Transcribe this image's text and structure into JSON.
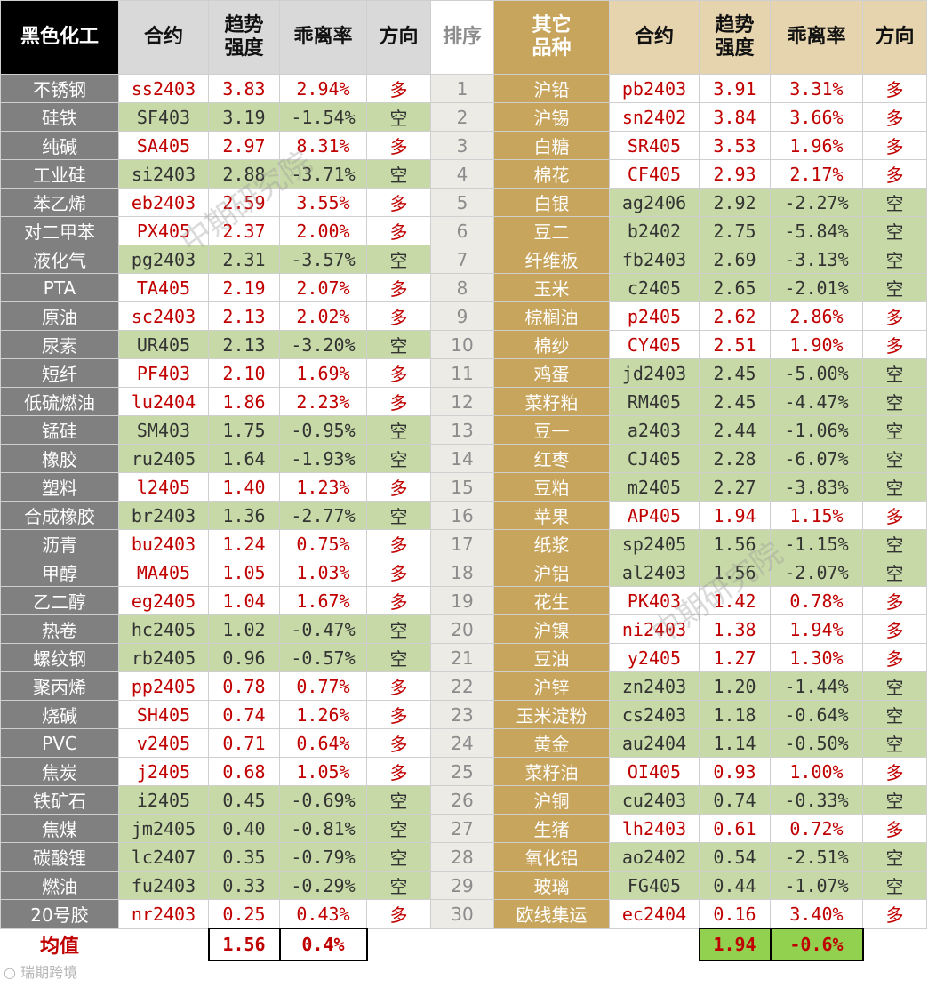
{
  "headers": {
    "left": [
      "黑色化工",
      "合约",
      "趋势强度",
      "乖离率",
      "方向"
    ],
    "rank": "排序",
    "right": [
      "其它品种",
      "合约",
      "趋势强度",
      "乖离率",
      "方向"
    ]
  },
  "rows": [
    {
      "rank": "1",
      "l": [
        "不锈钢",
        "ss2403",
        "3.83",
        "2.94%",
        "多"
      ],
      "r": [
        "沪铅",
        "pb2403",
        "3.91",
        "3.31%",
        "多"
      ]
    },
    {
      "rank": "2",
      "l": [
        "硅铁",
        "SF403",
        "3.19",
        "-1.54%",
        "空"
      ],
      "r": [
        "沪锡",
        "sn2402",
        "3.84",
        "3.66%",
        "多"
      ]
    },
    {
      "rank": "3",
      "l": [
        "纯碱",
        "SA405",
        "2.97",
        "8.31%",
        "多"
      ],
      "r": [
        "白糖",
        "SR405",
        "3.53",
        "1.96%",
        "多"
      ]
    },
    {
      "rank": "4",
      "l": [
        "工业硅",
        "si2403",
        "2.88",
        "-3.71%",
        "空"
      ],
      "r": [
        "棉花",
        "CF405",
        "2.93",
        "2.17%",
        "多"
      ]
    },
    {
      "rank": "5",
      "l": [
        "苯乙烯",
        "eb2403",
        "2.59",
        "3.55%",
        "多"
      ],
      "r": [
        "白银",
        "ag2406",
        "2.92",
        "-2.27%",
        "空"
      ]
    },
    {
      "rank": "6",
      "l": [
        "对二甲苯",
        "PX405",
        "2.37",
        "2.00%",
        "多"
      ],
      "r": [
        "豆二",
        "b2402",
        "2.75",
        "-5.84%",
        "空"
      ]
    },
    {
      "rank": "7",
      "l": [
        "液化气",
        "pg2403",
        "2.31",
        "-3.57%",
        "空"
      ],
      "r": [
        "纤维板",
        "fb2403",
        "2.69",
        "-3.13%",
        "空"
      ]
    },
    {
      "rank": "8",
      "l": [
        "PTA",
        "TA405",
        "2.19",
        "2.07%",
        "多"
      ],
      "r": [
        "玉米",
        "c2405",
        "2.65",
        "-2.01%",
        "空"
      ]
    },
    {
      "rank": "9",
      "l": [
        "原油",
        "sc2403",
        "2.13",
        "2.02%",
        "多"
      ],
      "r": [
        "棕榈油",
        "p2405",
        "2.62",
        "2.86%",
        "多"
      ]
    },
    {
      "rank": "10",
      "l": [
        "尿素",
        "UR405",
        "2.13",
        "-3.20%",
        "空"
      ],
      "r": [
        "棉纱",
        "CY405",
        "2.51",
        "1.90%",
        "多"
      ]
    },
    {
      "rank": "11",
      "l": [
        "短纤",
        "PF403",
        "2.10",
        "1.69%",
        "多"
      ],
      "r": [
        "鸡蛋",
        "jd2403",
        "2.45",
        "-5.00%",
        "空"
      ]
    },
    {
      "rank": "12",
      "l": [
        "低硫燃油",
        "lu2404",
        "1.86",
        "2.23%",
        "多"
      ],
      "r": [
        "菜籽粕",
        "RM405",
        "2.45",
        "-4.47%",
        "空"
      ]
    },
    {
      "rank": "13",
      "l": [
        "锰硅",
        "SM403",
        "1.75",
        "-0.95%",
        "空"
      ],
      "r": [
        "豆一",
        "a2403",
        "2.44",
        "-1.06%",
        "空"
      ]
    },
    {
      "rank": "14",
      "l": [
        "橡胶",
        "ru2405",
        "1.64",
        "-1.93%",
        "空"
      ],
      "r": [
        "红枣",
        "CJ405",
        "2.28",
        "-6.07%",
        "空"
      ]
    },
    {
      "rank": "15",
      "l": [
        "塑料",
        "l2405",
        "1.40",
        "1.23%",
        "多"
      ],
      "r": [
        "豆粕",
        "m2405",
        "2.27",
        "-3.83%",
        "空"
      ]
    },
    {
      "rank": "16",
      "l": [
        "合成橡胶",
        "br2403",
        "1.36",
        "-2.77%",
        "空"
      ],
      "r": [
        "苹果",
        "AP405",
        "1.94",
        "1.15%",
        "多"
      ]
    },
    {
      "rank": "17",
      "l": [
        "沥青",
        "bu2403",
        "1.24",
        "0.75%",
        "多"
      ],
      "r": [
        "纸浆",
        "sp2405",
        "1.56",
        "-1.15%",
        "空"
      ]
    },
    {
      "rank": "18",
      "l": [
        "甲醇",
        "MA405",
        "1.05",
        "1.03%",
        "多"
      ],
      "r": [
        "沪铝",
        "al2403",
        "1.56",
        "-2.07%",
        "空"
      ]
    },
    {
      "rank": "19",
      "l": [
        "乙二醇",
        "eg2405",
        "1.04",
        "1.67%",
        "多"
      ],
      "r": [
        "花生",
        "PK403",
        "1.42",
        "0.78%",
        "多"
      ]
    },
    {
      "rank": "20",
      "l": [
        "热卷",
        "hc2405",
        "1.02",
        "-0.47%",
        "空"
      ],
      "r": [
        "沪镍",
        "ni2403",
        "1.38",
        "1.94%",
        "多"
      ]
    },
    {
      "rank": "21",
      "l": [
        "螺纹钢",
        "rb2405",
        "0.96",
        "-0.57%",
        "空"
      ],
      "r": [
        "豆油",
        "y2405",
        "1.27",
        "1.30%",
        "多"
      ]
    },
    {
      "rank": "22",
      "l": [
        "聚丙烯",
        "pp2405",
        "0.78",
        "0.77%",
        "多"
      ],
      "r": [
        "沪锌",
        "zn2403",
        "1.20",
        "-1.44%",
        "空"
      ]
    },
    {
      "rank": "23",
      "l": [
        "烧碱",
        "SH405",
        "0.74",
        "1.26%",
        "多"
      ],
      "r": [
        "玉米淀粉",
        "cs2403",
        "1.18",
        "-0.64%",
        "空"
      ]
    },
    {
      "rank": "24",
      "l": [
        "PVC",
        "v2405",
        "0.71",
        "0.64%",
        "多"
      ],
      "r": [
        "黄金",
        "au2404",
        "1.14",
        "-0.50%",
        "空"
      ]
    },
    {
      "rank": "25",
      "l": [
        "焦炭",
        "j2405",
        "0.68",
        "1.05%",
        "多"
      ],
      "r": [
        "菜籽油",
        "OI405",
        "0.93",
        "1.00%",
        "多"
      ]
    },
    {
      "rank": "26",
      "l": [
        "铁矿石",
        "i2405",
        "0.45",
        "-0.69%",
        "空"
      ],
      "r": [
        "沪铜",
        "cu2403",
        "0.74",
        "-0.33%",
        "空"
      ]
    },
    {
      "rank": "27",
      "l": [
        "焦煤",
        "jm2405",
        "0.40",
        "-0.81%",
        "空"
      ],
      "r": [
        "生猪",
        "lh2403",
        "0.61",
        "0.72%",
        "多"
      ]
    },
    {
      "rank": "28",
      "l": [
        "碳酸锂",
        "lc2407",
        "0.35",
        "-0.79%",
        "空"
      ],
      "r": [
        "氧化铝",
        "ao2402",
        "0.54",
        "-2.51%",
        "空"
      ]
    },
    {
      "rank": "29",
      "l": [
        "燃油",
        "fu2403",
        "0.33",
        "-0.29%",
        "空"
      ],
      "r": [
        "玻璃",
        "FG405",
        "0.44",
        "-1.07%",
        "空"
      ]
    },
    {
      "rank": "30",
      "l": [
        "20号胶",
        "nr2403",
        "0.25",
        "0.43%",
        "多"
      ],
      "r": [
        "欧线集运",
        "ec2404",
        "0.16",
        "3.40%",
        "多"
      ]
    }
  ],
  "footer": {
    "label": "均值",
    "left_strength": "1.56",
    "left_bias": "0.4%",
    "right_strength": "1.94",
    "right_bias": "-0.6%"
  },
  "watermarks": [
    "中期研究院",
    "中期研究院"
  ],
  "badge": "瑞期跨境"
}
